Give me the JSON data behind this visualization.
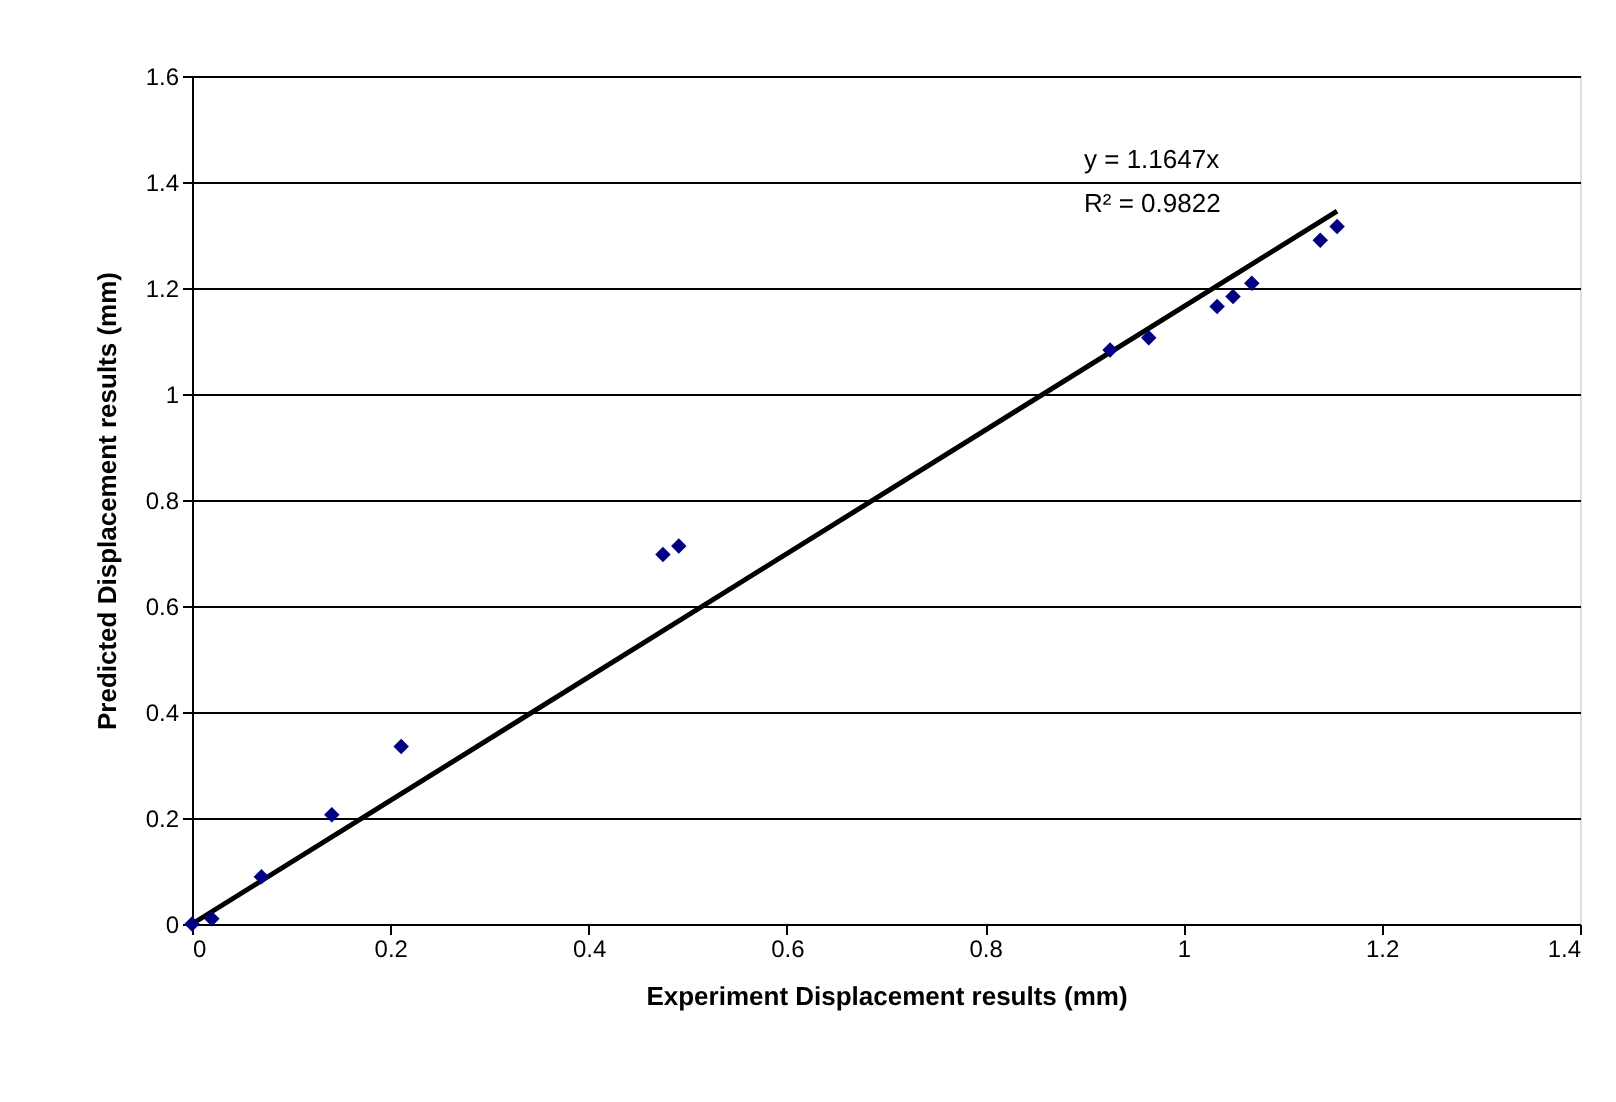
{
  "chart_data": {
    "type": "scatter",
    "xlabel": "Experiment Displacement results (mm)",
    "ylabel": "Predicted Displacement results (mm)",
    "series": [
      {
        "color": "#000080",
        "marker": "diamond",
        "x": [
          0,
          0.02,
          0.07,
          0.141,
          0.211,
          0.475,
          0.491,
          0.926,
          0.965,
          1.034,
          1.05,
          1.069,
          1.138,
          1.155
        ],
        "values": [
          0,
          0.01,
          0.089,
          0.206,
          0.335,
          0.697,
          0.713,
          1.083,
          1.106,
          1.165,
          1.184,
          1.209,
          1.29,
          1.316
        ]
      },
      {
        "type": "line",
        "color": "#000000",
        "line_style": "solid",
        "x": [
          0,
          1.155
        ],
        "values": [
          0,
          1.345
        ]
      }
    ],
    "annotations": [
      "y = 1.1647x",
      "R² = 0.9822"
    ],
    "xlim": [
      0,
      1.4
    ],
    "xticks": [
      {
        "value": 0,
        "label": "0"
      },
      0.2,
      0.4,
      0.6,
      0.8,
      {
        "value": 1,
        "label": "1"
      },
      1.2,
      1.4
    ],
    "ylim": [
      0,
      1.6
    ],
    "yticks": [
      {
        "value": 0,
        "label": "0"
      },
      0.2,
      0.4,
      0.6,
      0.8,
      {
        "value": 1,
        "label": "1"
      },
      1.2,
      1.4,
      1.6
    ],
    "grid": "y"
  }
}
